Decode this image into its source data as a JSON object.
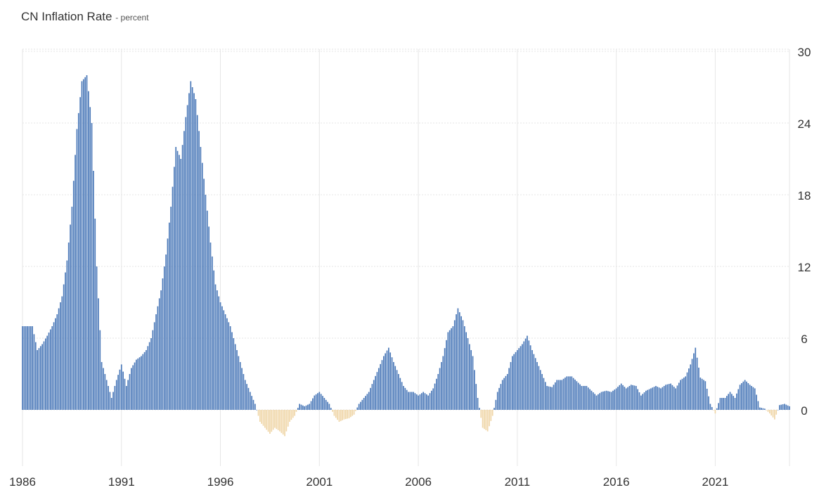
{
  "chart_data": {
    "type": "bar",
    "title": "CN Inflation Rate",
    "unit_suffix": "- percent",
    "ylim": [
      -5,
      31
    ],
    "xlim": [
      1986.0,
      2024.75
    ],
    "yticks": [
      0,
      6,
      12,
      18,
      24,
      30
    ],
    "xticks": [
      1986,
      1991,
      1996,
      2001,
      2006,
      2011,
      2016,
      2021
    ],
    "grid": true,
    "y_axis_position": "right",
    "positive_color": "#4a78b8",
    "negative_color": "#efd5a6",
    "series": [
      {
        "points": [
          [
            1986.0,
            7.0
          ],
          [
            1986.5,
            7.0
          ],
          [
            1986.75,
            5.0
          ],
          [
            1987.0,
            5.5
          ],
          [
            1987.25,
            6.2
          ],
          [
            1987.5,
            7.0
          ],
          [
            1987.75,
            8.0
          ],
          [
            1988.0,
            9.5
          ],
          [
            1988.25,
            12.5
          ],
          [
            1988.5,
            17.0
          ],
          [
            1988.75,
            23.5
          ],
          [
            1989.0,
            27.5
          ],
          [
            1989.25,
            28.0
          ],
          [
            1989.5,
            24.0
          ],
          [
            1989.75,
            12.0
          ],
          [
            1990.0,
            4.0
          ],
          [
            1990.25,
            2.5
          ],
          [
            1990.5,
            1.0
          ],
          [
            1990.75,
            2.5
          ],
          [
            1991.0,
            3.8
          ],
          [
            1991.25,
            2.0
          ],
          [
            1991.5,
            3.5
          ],
          [
            1991.75,
            4.2
          ],
          [
            1992.0,
            4.5
          ],
          [
            1992.25,
            5.0
          ],
          [
            1992.5,
            6.0
          ],
          [
            1992.75,
            8.0
          ],
          [
            1993.0,
            10.0
          ],
          [
            1993.25,
            13.0
          ],
          [
            1993.5,
            17.0
          ],
          [
            1993.75,
            22.0
          ],
          [
            1994.0,
            21.0
          ],
          [
            1994.25,
            24.5
          ],
          [
            1994.5,
            27.5
          ],
          [
            1994.75,
            26.0
          ],
          [
            1995.0,
            22.0
          ],
          [
            1995.25,
            18.0
          ],
          [
            1995.5,
            14.0
          ],
          [
            1995.75,
            10.5
          ],
          [
            1996.0,
            9.0
          ],
          [
            1996.25,
            8.0
          ],
          [
            1996.5,
            7.0
          ],
          [
            1996.75,
            5.5
          ],
          [
            1997.0,
            4.0
          ],
          [
            1997.25,
            2.5
          ],
          [
            1997.5,
            1.5
          ],
          [
            1997.75,
            0.5
          ],
          [
            1998.0,
            -1.0
          ],
          [
            1998.25,
            -1.5
          ],
          [
            1998.5,
            -2.0
          ],
          [
            1998.75,
            -1.5
          ],
          [
            1999.0,
            -1.8
          ],
          [
            1999.25,
            -2.2
          ],
          [
            1999.5,
            -1.0
          ],
          [
            1999.75,
            -0.5
          ],
          [
            2000.0,
            0.5
          ],
          [
            2000.25,
            0.3
          ],
          [
            2000.5,
            0.5
          ],
          [
            2000.75,
            1.2
          ],
          [
            2001.0,
            1.5
          ],
          [
            2001.25,
            1.0
          ],
          [
            2001.5,
            0.5
          ],
          [
            2001.75,
            -0.5
          ],
          [
            2002.0,
            -1.0
          ],
          [
            2002.25,
            -0.8
          ],
          [
            2002.5,
            -0.7
          ],
          [
            2002.75,
            -0.4
          ],
          [
            2003.0,
            0.5
          ],
          [
            2003.25,
            1.0
          ],
          [
            2003.5,
            1.5
          ],
          [
            2003.75,
            2.5
          ],
          [
            2004.0,
            3.5
          ],
          [
            2004.25,
            4.5
          ],
          [
            2004.5,
            5.2
          ],
          [
            2004.75,
            4.0
          ],
          [
            2005.0,
            3.0
          ],
          [
            2005.25,
            2.0
          ],
          [
            2005.5,
            1.5
          ],
          [
            2005.75,
            1.5
          ],
          [
            2006.0,
            1.2
          ],
          [
            2006.25,
            1.5
          ],
          [
            2006.5,
            1.2
          ],
          [
            2006.75,
            1.8
          ],
          [
            2007.0,
            3.0
          ],
          [
            2007.25,
            4.5
          ],
          [
            2007.5,
            6.5
          ],
          [
            2007.75,
            7.0
          ],
          [
            2008.0,
            8.5
          ],
          [
            2008.25,
            7.5
          ],
          [
            2008.5,
            6.0
          ],
          [
            2008.75,
            4.5
          ],
          [
            2009.0,
            1.0
          ],
          [
            2009.25,
            -1.5
          ],
          [
            2009.5,
            -1.8
          ],
          [
            2009.75,
            -0.5
          ],
          [
            2010.0,
            1.5
          ],
          [
            2010.25,
            2.5
          ],
          [
            2010.5,
            3.0
          ],
          [
            2010.75,
            4.5
          ],
          [
            2011.0,
            5.0
          ],
          [
            2011.25,
            5.5
          ],
          [
            2011.5,
            6.2
          ],
          [
            2011.75,
            5.0
          ],
          [
            2012.0,
            4.0
          ],
          [
            2012.25,
            3.0
          ],
          [
            2012.5,
            2.0
          ],
          [
            2012.75,
            1.9
          ],
          [
            2013.0,
            2.5
          ],
          [
            2013.25,
            2.5
          ],
          [
            2013.5,
            2.8
          ],
          [
            2013.75,
            2.8
          ],
          [
            2014.0,
            2.4
          ],
          [
            2014.25,
            2.0
          ],
          [
            2014.5,
            2.0
          ],
          [
            2014.75,
            1.6
          ],
          [
            2015.0,
            1.2
          ],
          [
            2015.25,
            1.5
          ],
          [
            2015.5,
            1.6
          ],
          [
            2015.75,
            1.5
          ],
          [
            2016.0,
            1.8
          ],
          [
            2016.25,
            2.2
          ],
          [
            2016.5,
            1.8
          ],
          [
            2016.75,
            2.1
          ],
          [
            2017.0,
            2.0
          ],
          [
            2017.25,
            1.2
          ],
          [
            2017.5,
            1.6
          ],
          [
            2017.75,
            1.8
          ],
          [
            2018.0,
            2.0
          ],
          [
            2018.25,
            1.8
          ],
          [
            2018.5,
            2.1
          ],
          [
            2018.75,
            2.2
          ],
          [
            2019.0,
            1.8
          ],
          [
            2019.25,
            2.5
          ],
          [
            2019.5,
            2.8
          ],
          [
            2019.75,
            3.8
          ],
          [
            2020.0,
            5.2
          ],
          [
            2020.25,
            2.7
          ],
          [
            2020.5,
            2.4
          ],
          [
            2020.75,
            0.5
          ],
          [
            2021.0,
            -0.3
          ],
          [
            2021.25,
            1.0
          ],
          [
            2021.5,
            1.0
          ],
          [
            2021.75,
            1.5
          ],
          [
            2022.0,
            1.0
          ],
          [
            2022.25,
            2.1
          ],
          [
            2022.5,
            2.5
          ],
          [
            2022.75,
            2.1
          ],
          [
            2023.0,
            1.8
          ],
          [
            2023.25,
            0.2
          ],
          [
            2023.5,
            0.1
          ],
          [
            2023.75,
            -0.3
          ],
          [
            2024.0,
            -0.8
          ],
          [
            2024.25,
            0.4
          ],
          [
            2024.5,
            0.5
          ],
          [
            2024.75,
            0.3
          ]
        ]
      }
    ]
  }
}
